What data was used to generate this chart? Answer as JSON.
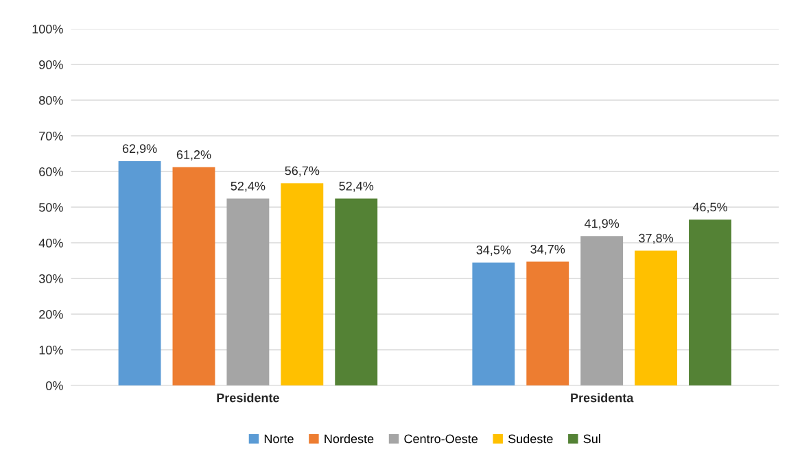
{
  "chart_data": {
    "type": "bar",
    "categories": [
      "Presidente",
      "Presidenta"
    ],
    "series": [
      {
        "name": "Norte",
        "color": "#5b9bd5",
        "values": [
          62.9,
          34.5
        ],
        "value_labels": [
          "62,9%",
          "34,5%"
        ]
      },
      {
        "name": "Nordeste",
        "color": "#ed7d31",
        "values": [
          61.2,
          34.7
        ],
        "value_labels": [
          "61,2%",
          "34,7%"
        ]
      },
      {
        "name": "Centro-Oeste",
        "color": "#a5a5a5",
        "values": [
          52.4,
          41.9
        ],
        "value_labels": [
          "52,4%",
          "41,9%"
        ]
      },
      {
        "name": "Sudeste",
        "color": "#ffc000",
        "values": [
          56.7,
          37.8
        ],
        "value_labels": [
          "56,7%",
          "37,8%"
        ]
      },
      {
        "name": "Sul",
        "color": "#548235",
        "values": [
          52.4,
          46.5
        ],
        "value_labels": [
          "52,4%",
          "46,5%"
        ]
      }
    ],
    "ylim": [
      0,
      100
    ],
    "yticks": [
      {
        "value": 0,
        "label": "0%"
      },
      {
        "value": 10,
        "label": "10%"
      },
      {
        "value": 20,
        "label": "20%"
      },
      {
        "value": 30,
        "label": "30%"
      },
      {
        "value": 40,
        "label": "40%"
      },
      {
        "value": 50,
        "label": "50%"
      },
      {
        "value": 60,
        "label": "60%"
      },
      {
        "value": 70,
        "label": "70%"
      },
      {
        "value": 80,
        "label": "80%"
      },
      {
        "value": 90,
        "label": "90%"
      },
      {
        "value": 100,
        "label": "100%"
      }
    ],
    "grid": "y",
    "legend": "bottom"
  }
}
